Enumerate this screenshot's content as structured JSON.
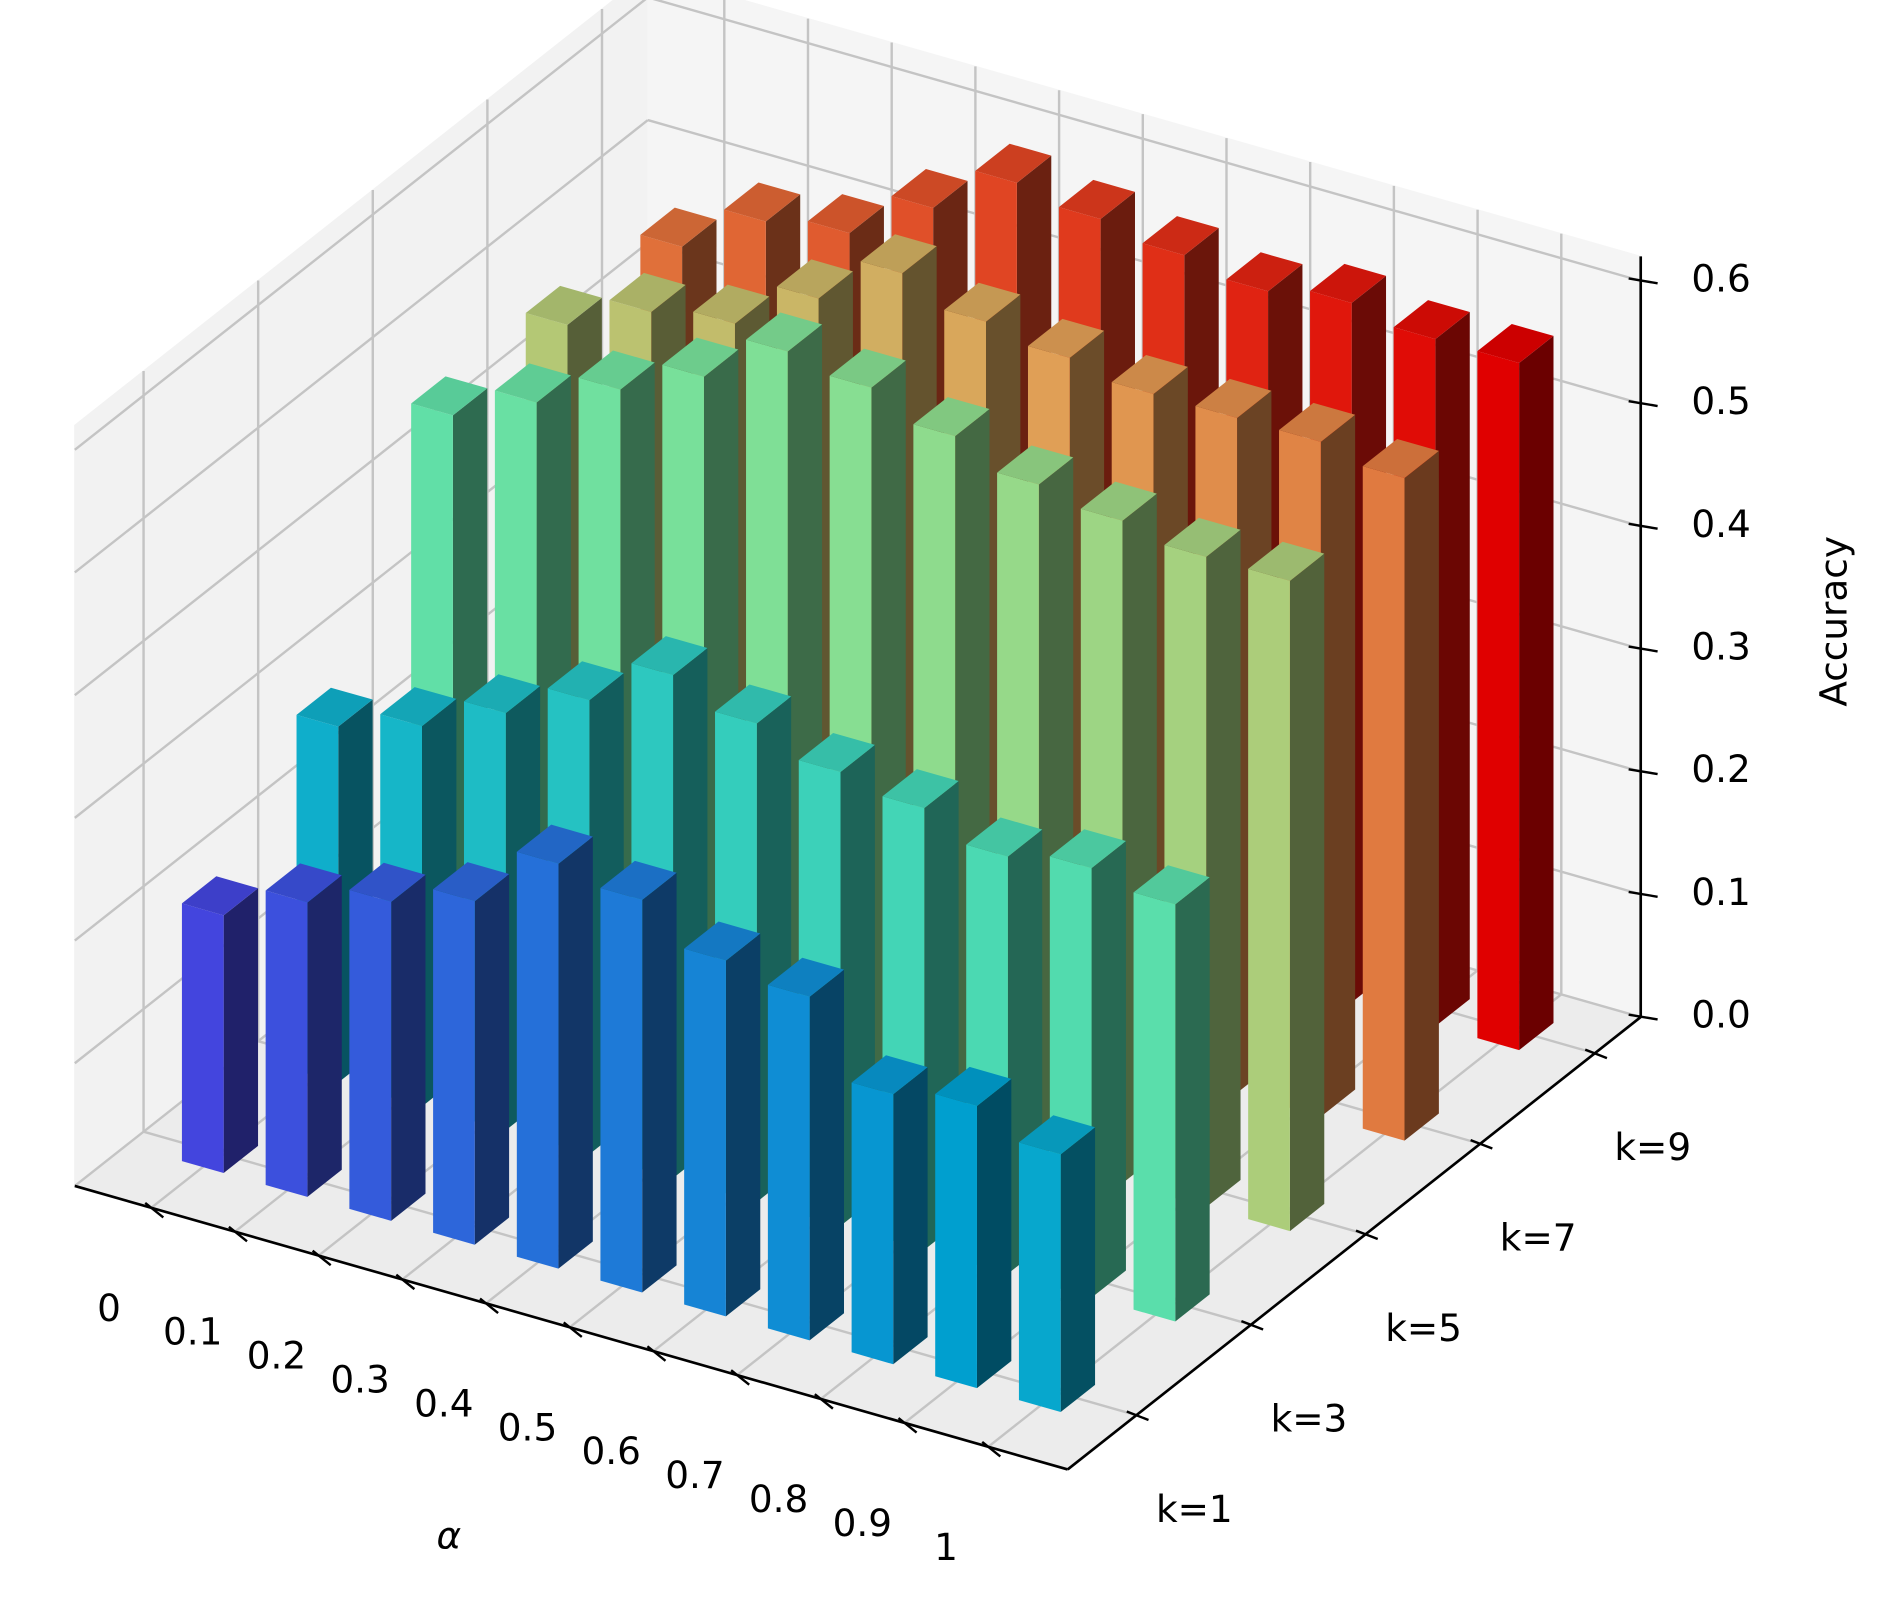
{
  "chart_data": {
    "type": "bar3d",
    "xlabel": "α",
    "zlabel": "Accuracy",
    "categories": [
      "0",
      "0.1",
      "0.2",
      "0.3",
      "0.4",
      "0.5",
      "0.6",
      "0.7",
      "0.8",
      "0.9",
      "1"
    ],
    "series": [
      {
        "name": "k=1",
        "values": [
          0.21,
          0.24,
          0.26,
          0.28,
          0.33,
          0.32,
          0.29,
          0.28,
          0.22,
          0.23,
          0.21
        ]
      },
      {
        "name": "k=3",
        "values": [
          0.29,
          0.31,
          0.34,
          0.37,
          0.41,
          0.39,
          0.37,
          0.36,
          0.34,
          0.35,
          0.34
        ]
      },
      {
        "name": "k=5",
        "values": [
          0.47,
          0.5,
          0.53,
          0.56,
          0.6,
          0.59,
          0.57,
          0.55,
          0.54,
          0.53,
          0.53
        ]
      },
      {
        "name": "k=7",
        "values": [
          0.47,
          0.5,
          0.51,
          0.55,
          0.59,
          0.57,
          0.56,
          0.55,
          0.55,
          0.55,
          0.54
        ]
      },
      {
        "name": "k=9",
        "values": [
          0.46,
          0.5,
          0.51,
          0.55,
          0.59,
          0.58,
          0.57,
          0.56,
          0.57,
          0.56,
          0.56
        ]
      }
    ],
    "zlim": [
      0,
      0.62
    ],
    "zticks": [
      {
        "value": 0,
        "label": "0.0"
      },
      0.1,
      0.2,
      0.3,
      0.4,
      0.5,
      0.6
    ],
    "colormap": "rainbow",
    "grid": true
  }
}
